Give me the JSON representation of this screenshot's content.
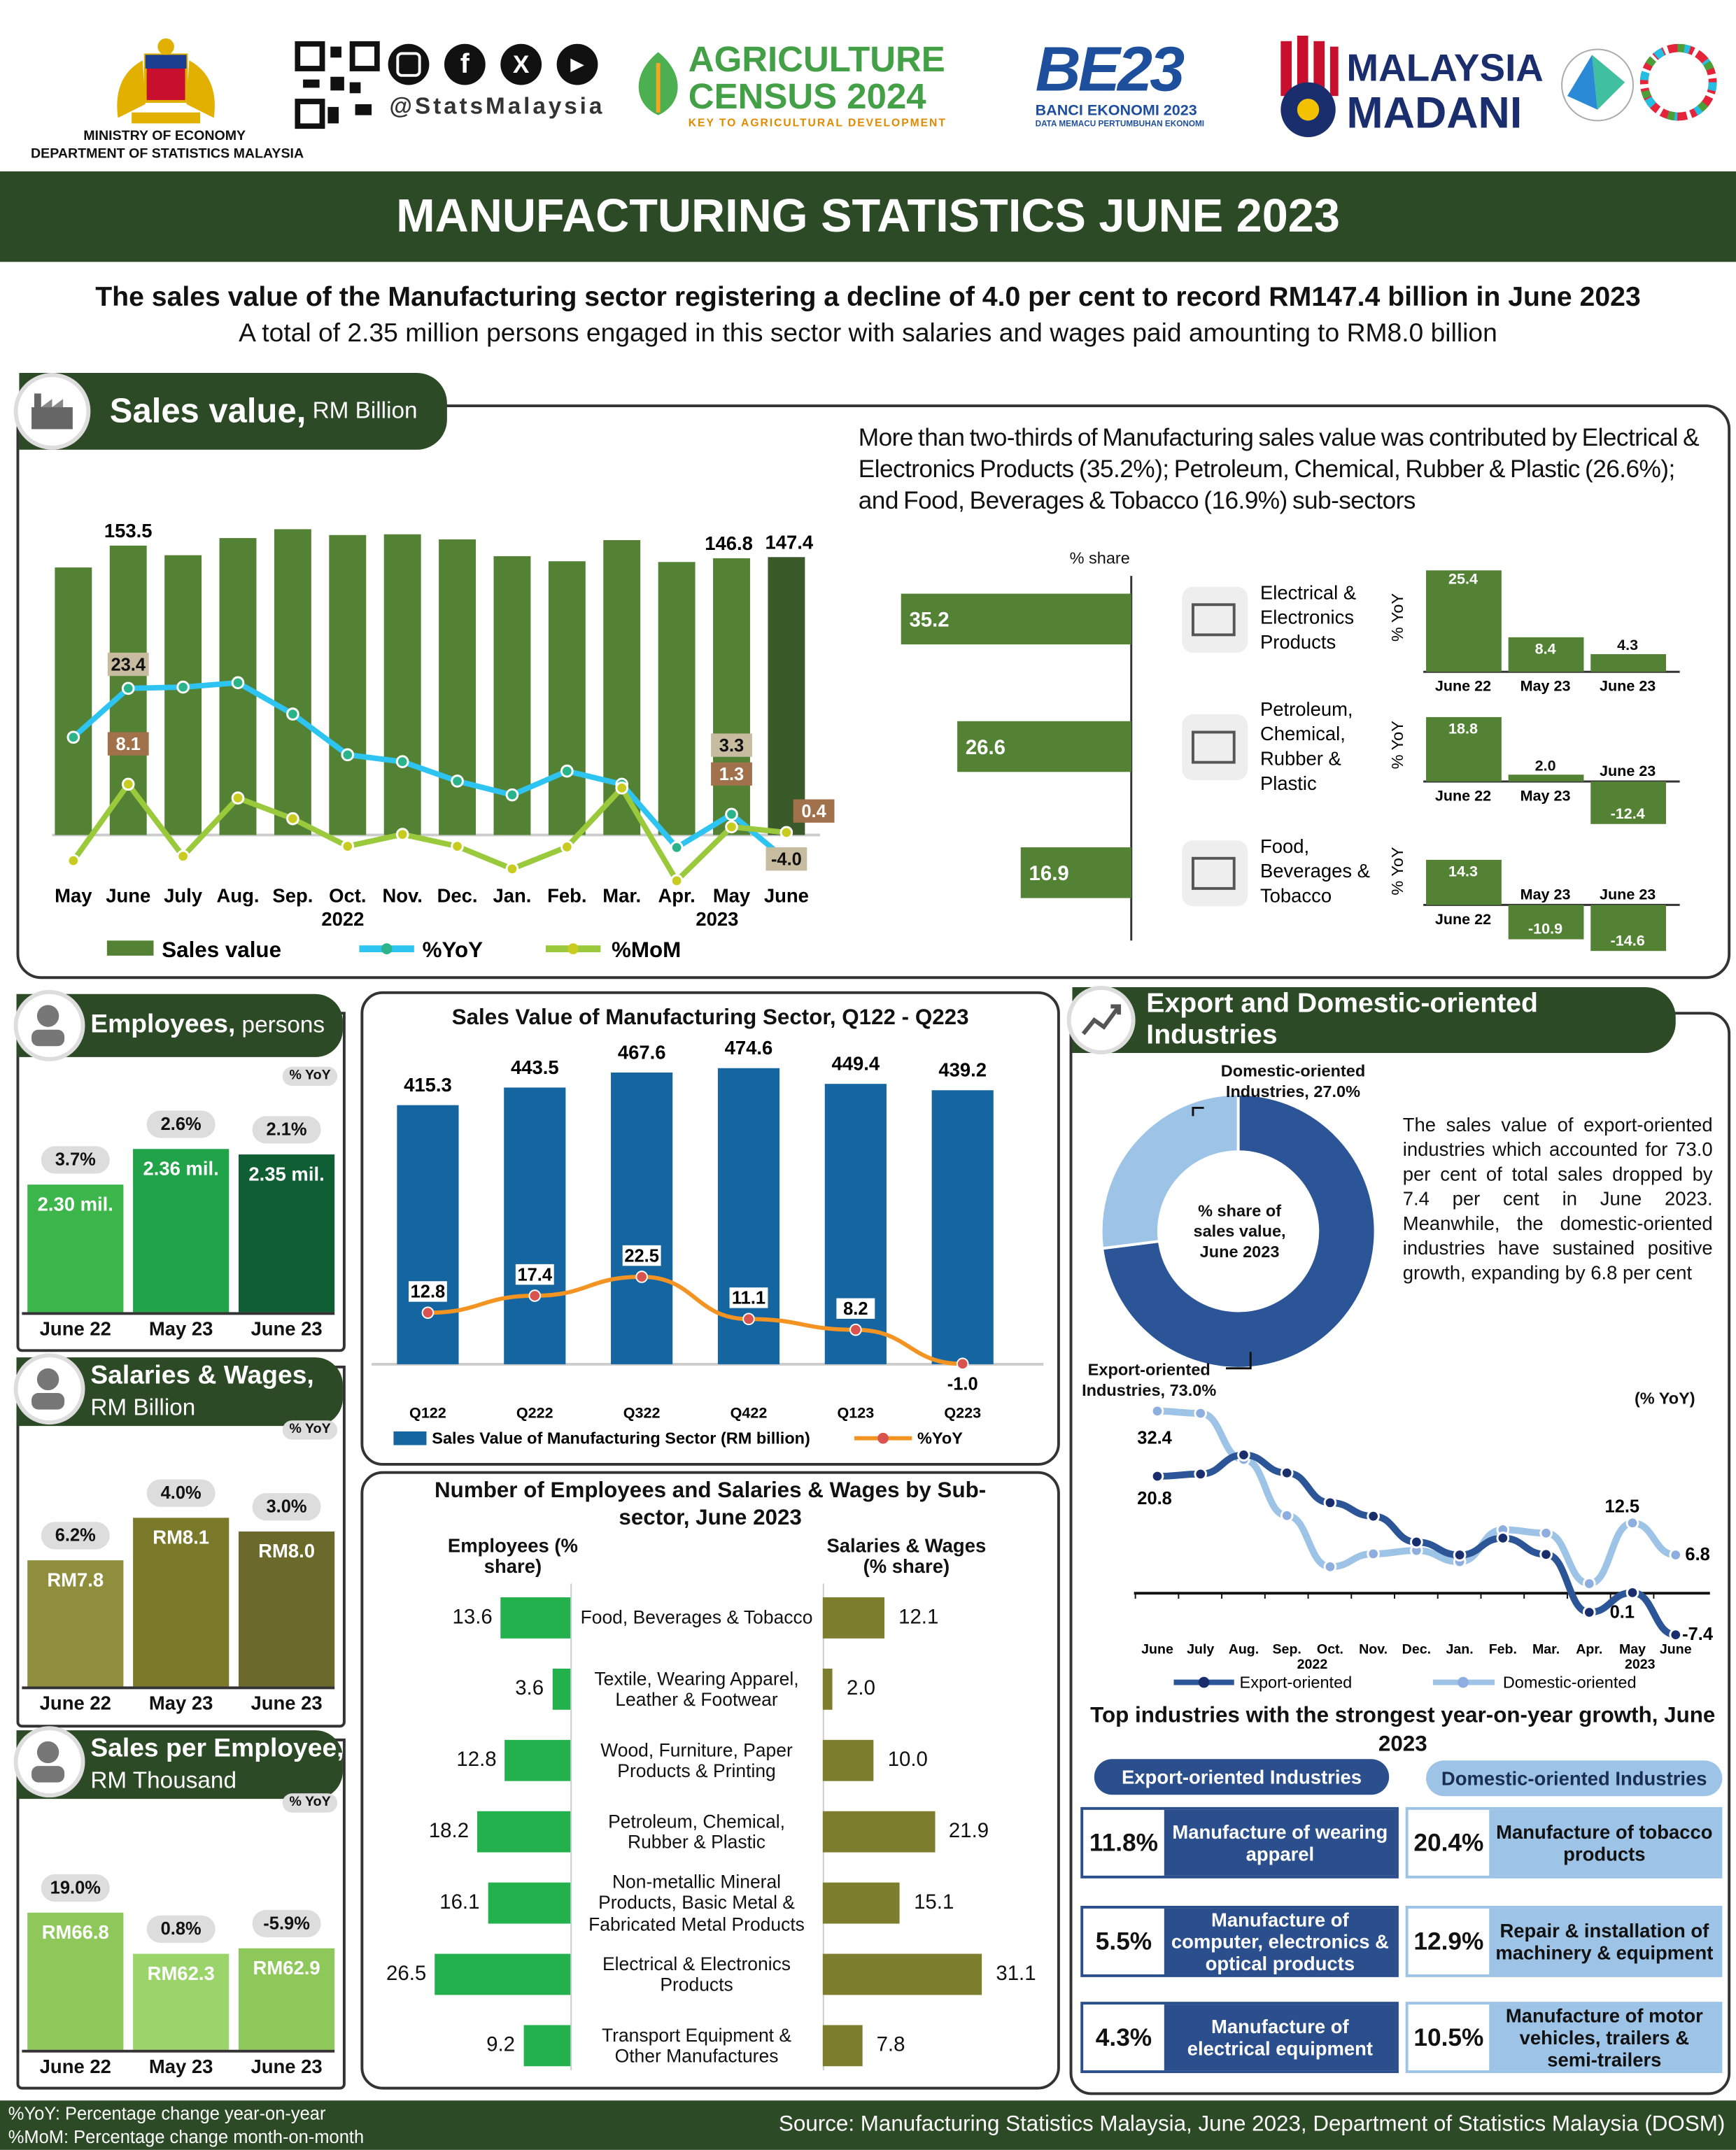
{
  "header": {
    "ministry_line1": "MINISTRY OF ECONOMY",
    "ministry_line2": "DEPARTMENT OF STATISTICS MALAYSIA",
    "social_handle": "@StatsMalaysia",
    "agri_logo_line1": "AGRICULTURE",
    "agri_logo_line2": "CENSUS 2024",
    "agri_logo_tagline": "KEY TO AGRICULTURAL DEVELOPMENT",
    "be_logo_main": "BE23",
    "be_logo_line1": "BANCI EKONOMI 2023",
    "be_logo_line2": "DATA MEMACU PERTUMBUHAN EKONOMI",
    "madani_line1": "MALAYSIA",
    "madani_line2": "MADANI"
  },
  "title": "MANUFACTURING STATISTICS JUNE 2023",
  "subtitle": {
    "line1": "The sales value of the Manufacturing sector registering a decline of 4.0 per cent to record RM147.4 billion in June 2023",
    "line2": "A total of  2.35 million persons engaged in this sector with salaries and wages paid amounting to RM8.0 billion"
  },
  "sales_section": {
    "title": "Sales value,",
    "unit": " RM Billion",
    "share_text": "More than two-thirds of Manufacturing sales value was contributed by Electrical & Electronics Products (35.2%); Petroleum, Chemical, Rubber & Plastic (26.6%); and Food, Beverages & Tobacco (16.9%) sub-sectors",
    "share_axis_label": "% share",
    "yoy_axis_label": "% YoY",
    "subsectors": [
      {
        "name": "Electrical & Electronics Products",
        "share": 35.2,
        "yoy_labels": [
          "June 22",
          "May 23",
          "June 23"
        ],
        "yoy": [
          25.4,
          8.4,
          4.3
        ]
      },
      {
        "name": "Petroleum, Chemical, Rubber & Plastic",
        "share": 26.6,
        "yoy_labels": [
          "June 22",
          "May 23",
          "June 23"
        ],
        "yoy": [
          18.8,
          2.0,
          -12.4
        ]
      },
      {
        "name": "Food, Beverages & Tobacco",
        "share": 16.9,
        "yoy_labels": [
          "June 22",
          "May 23",
          "June 23"
        ],
        "yoy": [
          14.3,
          -10.9,
          -14.6
        ]
      }
    ],
    "year_2022": "2022",
    "year_2023": "2023"
  },
  "employees": {
    "title": "Employees,",
    "unit": " persons",
    "yoy_tag": "% YoY",
    "labels": [
      "June 22",
      "May 23",
      "June 23"
    ],
    "values": [
      "2.30 mil.",
      "2.36 mil.",
      "2.35 mil."
    ],
    "numeric": [
      2.3,
      2.36,
      2.35
    ],
    "yoy": [
      "3.7%",
      "2.6%",
      "2.1%"
    ]
  },
  "salaries": {
    "title": "Salaries & Wages,",
    "unit": "RM Billion",
    "yoy_tag": "% YoY",
    "labels": [
      "June 22",
      "May 23",
      "June 23"
    ],
    "values": [
      "RM7.8",
      "RM8.1",
      "RM8.0"
    ],
    "numeric": [
      7.8,
      8.1,
      8.0
    ],
    "yoy": [
      "6.2%",
      "4.0%",
      "3.0%"
    ]
  },
  "sales_per_employee": {
    "title": "Sales per Employee,",
    "unit": "RM Thousand",
    "yoy_tag": "% YoY",
    "labels": [
      "June 22",
      "May 23",
      "June 23"
    ],
    "values": [
      "RM66.8",
      "RM62.3",
      "RM62.9"
    ],
    "numeric": [
      66.8,
      62.3,
      62.9
    ],
    "yoy": [
      "19.0%",
      "0.8%",
      "-5.9%"
    ]
  },
  "export_section": {
    "title": "Export and Domestic-oriented Industries",
    "donut_center": "% share of sales value, June 2023",
    "domestic_label": "Domestic-oriented Industries, 27.0%",
    "export_label": "Export-oriented Industries, 73.0%",
    "paragraph": "The sales value of export-oriented industries which accounted for 73.0 per cent of total sales dropped by 7.4 per cent in June 2023. Meanwhile, the domestic-oriented industries have sustained positive growth, expanding by 6.8 per cent",
    "yoy_unit": "(% YoY)",
    "top_title": "Top industries with the strongest year-on-year growth, June 2023",
    "export_pill": "Export-oriented Industries",
    "domestic_pill": "Domestic-oriented Industries",
    "export_top": [
      {
        "pct": "11.8%",
        "name": "Manufacture of wearing apparel"
      },
      {
        "pct": "5.5%",
        "name": "Manufacture of computer, electronics & optical products"
      },
      {
        "pct": "4.3%",
        "name": "Manufacture of electrical equipment"
      }
    ],
    "domestic_top": [
      {
        "pct": "20.4%",
        "name": "Manufacture of tobacco products"
      },
      {
        "pct": "12.9%",
        "name": "Repair & installation of machinery & equipment"
      },
      {
        "pct": "10.5%",
        "name": "Manufacture of motor vehicles, trailers & semi-trailers"
      }
    ]
  },
  "footer": {
    "note1": "%YoY: Percentage change year-on-year",
    "note2": "%MoM: Percentage change month-on-month",
    "source": "Source: Manufacturing Statistics Malaysia, June 2023, Department of Statistics Malaysia (DOSM)"
  },
  "colors": {
    "dark_green": "#2d4a26",
    "bar_green": "#548235",
    "yoy_blue": "#2ec4f1",
    "mom_green": "#9ac93c",
    "q_blue": "#1566a0",
    "orange": "#f39422",
    "export_blue": "#2b5597",
    "domestic_blue": "#9dc3e6"
  },
  "chart_data": [
    {
      "type": "bar+line",
      "title": "Sales value, RM Billion",
      "categories": [
        "May",
        "June",
        "July",
        "Aug.",
        "Sep.",
        "Oct.",
        "Nov.",
        "Dec.",
        "Jan.",
        "Feb.",
        "Mar.",
        "Apr.",
        "May",
        "June"
      ],
      "series": [
        {
          "name": "Sales value",
          "type": "bar",
          "values": [
            141.9,
            153.5,
            148.4,
            157.5,
            162.2,
            159.1,
            159.5,
            156.8,
            147.9,
            145.2,
            156.4,
            144.8,
            146.8,
            147.4
          ],
          "labels_shown": {
            "1": "153.5",
            "12": "146.8",
            "13": "147.4"
          }
        },
        {
          "name": "%YoY",
          "type": "line",
          "values": [
            15.6,
            23.4,
            23.6,
            24.3,
            19.3,
            12.8,
            11.7,
            8.6,
            6.4,
            10.2,
            8.1,
            -2.0,
            3.3,
            -4.0
          ],
          "labels_shown": {
            "1": "23.4",
            "12": "3.3",
            "13": "-4.0"
          }
        },
        {
          "name": "%MoM",
          "type": "line",
          "values": [
            -4.1,
            8.1,
            -3.4,
            5.9,
            2.6,
            -1.8,
            0.1,
            -1.8,
            -5.4,
            -1.9,
            7.5,
            -7.3,
            1.3,
            0.4
          ],
          "labels_shown": {
            "1": "8.1",
            "12": "1.3",
            "13": "0.4"
          }
        }
      ],
      "legend": [
        "Sales value",
        "%YoY",
        "%MoM"
      ],
      "legend_position": "bottom"
    },
    {
      "type": "bar+line",
      "title": "Sales Value of Manufacturing Sector, Q122 - Q223",
      "categories": [
        "Q122",
        "Q222",
        "Q322",
        "Q422",
        "Q123",
        "Q223"
      ],
      "series": [
        {
          "name": "Sales Value of Manufacturing Sector (RM billion)",
          "type": "bar",
          "values": [
            415.3,
            443.5,
            467.6,
            474.6,
            449.4,
            439.2
          ]
        },
        {
          "name": "%YoY",
          "type": "line",
          "values": [
            12.8,
            17.4,
            22.5,
            11.1,
            8.2,
            -1.0
          ]
        }
      ],
      "legend_position": "bottom"
    },
    {
      "type": "bar",
      "title": "Number of Employees and Salaries & Wages by Sub-sector, June 2023",
      "left_header": "Employees (% share)",
      "right_header": "Salaries & Wages (% share)",
      "categories": [
        "Food, Beverages & Tobacco",
        "Textile, Wearing Apparel, Leather & Footwear",
        "Wood, Furniture, Paper Products & Printing",
        "Petroleum, Chemical, Rubber & Plastic",
        "Non-metallic Mineral Products, Basic Metal & Fabricated Metal Products",
        "Electrical & Electronics Products",
        "Transport Equipment & Other Manufactures"
      ],
      "series": [
        {
          "name": "Employees",
          "values": [
            13.6,
            3.6,
            12.8,
            18.2,
            16.1,
            26.5,
            9.2
          ]
        },
        {
          "name": "Salaries & Wages",
          "values": [
            12.1,
            2.0,
            10.0,
            21.9,
            15.1,
            31.1,
            7.8
          ]
        }
      ]
    },
    {
      "type": "pie",
      "title": "% share of sales value, June 2023",
      "categories": [
        "Export-oriented Industries",
        "Domestic-oriented Industries"
      ],
      "values": [
        73.0,
        27.0
      ]
    },
    {
      "type": "line",
      "ylabel": "(% YoY)",
      "categories": [
        "June",
        "July",
        "Aug.",
        "Sep.",
        "Oct.",
        "Nov.",
        "Dec.",
        "Jan.",
        "Feb.",
        "Mar.",
        "Apr.",
        "May",
        "June"
      ],
      "series": [
        {
          "name": "Export-oriented",
          "values": [
            20.8,
            21.2,
            24.6,
            21.4,
            16.1,
            13.7,
            9.1,
            6.8,
            9.8,
            6.9,
            -3.4,
            0.1,
            -7.4
          ]
        },
        {
          "name": "Domestic-oriented",
          "values": [
            32.4,
            32.0,
            23.8,
            13.8,
            4.7,
            7.0,
            7.6,
            5.6,
            11.3,
            10.7,
            1.7,
            12.5,
            6.8
          ]
        }
      ],
      "labels_shown": [
        "32.4",
        "20.8",
        "12.5",
        "6.8",
        "0.1",
        "-7.4"
      ],
      "legend_position": "bottom"
    }
  ]
}
